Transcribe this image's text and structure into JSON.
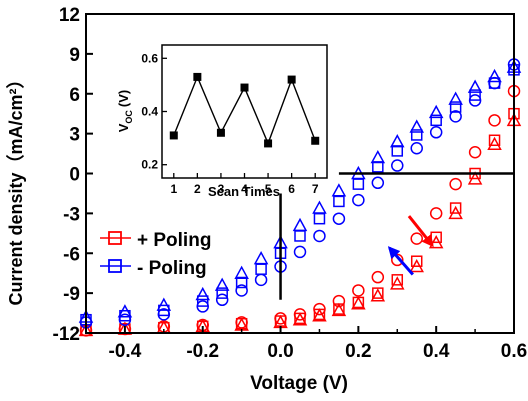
{
  "chart_data": [
    {
      "type": "scatter",
      "xlabel": "Voltage (V)",
      "ylabel": "Current density（mA/cm²）",
      "xlim": [
        -0.5,
        0.6
      ],
      "ylim": [
        -12,
        12
      ],
      "x_ticks": [
        "-0.4",
        "-0.2",
        "0.0",
        "0.2",
        "0.4",
        "0.6"
      ],
      "y_ticks": [
        "-12",
        "-9",
        "-6",
        "-3",
        "0",
        "3",
        "6",
        "9",
        "12"
      ],
      "grid": false,
      "legend_position": "lower-left",
      "legend": [
        {
          "label": "+ Poling",
          "color": "#ff0000",
          "marker": "open-square"
        },
        {
          "label": "- Poling",
          "color": "#0000ff",
          "marker": "open-square"
        }
      ],
      "series": [
        {
          "name": "+ Poling",
          "color": "#ff0000",
          "marker": "open-square",
          "x": [
            -0.5,
            -0.4,
            -0.3,
            -0.2,
            -0.1,
            0.0,
            0.05,
            0.1,
            0.15,
            0.2,
            0.25,
            0.3,
            0.35,
            0.4,
            0.45,
            0.5,
            0.55,
            0.6
          ],
          "y": [
            -11.8,
            -11.7,
            -11.6,
            -11.5,
            -11.3,
            -11.1,
            -10.9,
            -10.6,
            -10.2,
            -9.7,
            -9.0,
            -8.0,
            -6.6,
            -4.8,
            -2.6,
            0.0,
            2.5,
            4.5
          ]
        },
        {
          "name": "+ Poling (circle)",
          "color": "#ff0000",
          "marker": "open-circle",
          "x": [
            -0.5,
            -0.4,
            -0.3,
            -0.2,
            -0.1,
            0.0,
            0.05,
            0.1,
            0.15,
            0.2,
            0.25,
            0.3,
            0.35,
            0.4,
            0.45,
            0.5,
            0.55,
            0.6
          ],
          "y": [
            -11.8,
            -11.7,
            -11.5,
            -11.4,
            -11.2,
            -10.9,
            -10.6,
            -10.2,
            -9.6,
            -8.8,
            -7.8,
            -6.5,
            -4.9,
            -3.0,
            -0.8,
            1.6,
            4.0,
            6.2
          ]
        },
        {
          "name": "+ Poling (triangle)",
          "color": "#ff0000",
          "marker": "open-triangle",
          "x": [
            -0.5,
            -0.4,
            -0.3,
            -0.2,
            -0.1,
            0.0,
            0.05,
            0.1,
            0.15,
            0.2,
            0.25,
            0.3,
            0.35,
            0.4,
            0.45,
            0.5,
            0.55,
            0.6
          ],
          "y": [
            -11.8,
            -11.7,
            -11.6,
            -11.5,
            -11.4,
            -11.2,
            -11.0,
            -10.7,
            -10.3,
            -9.8,
            -9.2,
            -8.3,
            -7.0,
            -5.2,
            -3.0,
            -0.4,
            2.2,
            4.0
          ]
        },
        {
          "name": "- Poling",
          "color": "#0000ff",
          "marker": "open-square",
          "x": [
            -0.5,
            -0.4,
            -0.3,
            -0.2,
            -0.15,
            -0.1,
            -0.05,
            0.0,
            0.05,
            0.1,
            0.15,
            0.2,
            0.25,
            0.3,
            0.35,
            0.4,
            0.45,
            0.5,
            0.55,
            0.6
          ],
          "y": [
            -11.0,
            -10.7,
            -10.3,
            -9.6,
            -9.0,
            -8.2,
            -7.2,
            -6.0,
            -4.7,
            -3.4,
            -2.1,
            -0.8,
            0.5,
            1.7,
            2.9,
            4.0,
            5.0,
            5.9,
            6.8,
            7.8
          ]
        },
        {
          "name": "- Poling (circle)",
          "color": "#0000ff",
          "marker": "open-circle",
          "x": [
            -0.5,
            -0.4,
            -0.3,
            -0.2,
            -0.15,
            -0.1,
            -0.05,
            0.0,
            0.05,
            0.1,
            0.15,
            0.2,
            0.25,
            0.3,
            0.35,
            0.4,
            0.45,
            0.5,
            0.55,
            0.6
          ],
          "y": [
            -11.2,
            -11.0,
            -10.6,
            -10.0,
            -9.5,
            -8.8,
            -8.0,
            -7.0,
            -5.9,
            -4.7,
            -3.4,
            -2.0,
            -0.7,
            0.6,
            1.9,
            3.1,
            4.3,
            5.5,
            6.8,
            8.2
          ]
        },
        {
          "name": "- Poling (triangle)",
          "color": "#0000ff",
          "marker": "open-triangle",
          "x": [
            -0.5,
            -0.4,
            -0.3,
            -0.2,
            -0.15,
            -0.1,
            -0.05,
            0.0,
            0.05,
            0.1,
            0.15,
            0.2,
            0.25,
            0.3,
            0.35,
            0.4,
            0.45,
            0.5,
            0.55,
            0.6
          ],
          "y": [
            -10.8,
            -10.4,
            -9.9,
            -9.1,
            -8.4,
            -7.5,
            -6.4,
            -5.2,
            -3.9,
            -2.6,
            -1.3,
            0.0,
            1.2,
            2.4,
            3.5,
            4.6,
            5.6,
            6.5,
            7.3,
            8.0
          ]
        }
      ],
      "annotations": [
        {
          "type": "arrow",
          "color": "#ff0000",
          "from": [
            0.33,
            -3.2
          ],
          "to": [
            0.39,
            -5.4
          ]
        },
        {
          "type": "arrow",
          "color": "#0000ff",
          "from": [
            0.34,
            -7.6
          ],
          "to": [
            0.28,
            -5.6
          ]
        }
      ]
    },
    {
      "type": "line",
      "inset": true,
      "xlabel": "Scan Times",
      "ylabel": "V_OC (V)",
      "ylabel_main": "V",
      "ylabel_sub": "OC",
      "ylabel_unit": "(V)",
      "xlim": [
        0.5,
        7.5
      ],
      "ylim": [
        0.15,
        0.65
      ],
      "x_ticks": [
        "1",
        "2",
        "3",
        "4",
        "5",
        "6",
        "7"
      ],
      "y_ticks": [
        "0.2",
        "0.4",
        "0.6"
      ],
      "marker": "filled-square",
      "color": "#000000",
      "x": [
        1,
        2,
        3,
        4,
        5,
        6,
        7
      ],
      "y": [
        0.31,
        0.53,
        0.32,
        0.49,
        0.28,
        0.52,
        0.29
      ]
    }
  ]
}
